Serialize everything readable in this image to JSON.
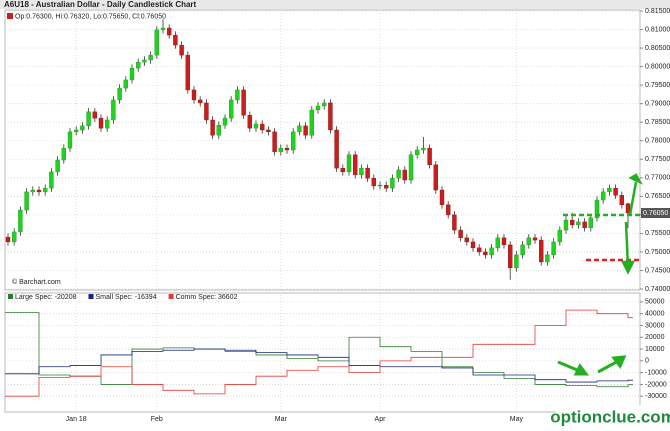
{
  "chart_data": [
    {
      "type": "candlestick",
      "title": "A6U18 - Australian Dollar - Daily Candlestick Chart",
      "ohlc_label": "Op:0.76300, Hi:0.76320, Lo:0.75650, Cl:0.76050",
      "source": "© Barchart.com",
      "last_price": {
        "value": 0.7605,
        "label": "0.76050"
      },
      "up_color": "#22d022",
      "down_color": "#c81e1e",
      "ylim": [
        0.74,
        0.815
      ],
      "yticks": [
        {
          "value": 0.74,
          "label": "0.74000"
        },
        {
          "value": 0.745,
          "label": "0.74500"
        },
        {
          "value": 0.75,
          "label": "0.75000"
        },
        {
          "value": 0.755,
          "label": "0.75500"
        },
        {
          "value": 0.76,
          "label": "0.76000"
        },
        {
          "value": 0.765,
          "label": "0.76500"
        },
        {
          "value": 0.77,
          "label": "0.77000"
        },
        {
          "value": 0.775,
          "label": "0.77500"
        },
        {
          "value": 0.78,
          "label": "0.78000"
        },
        {
          "value": 0.785,
          "label": "0.78500"
        },
        {
          "value": 0.79,
          "label": "0.79000"
        },
        {
          "value": 0.795,
          "label": "0.79500"
        },
        {
          "value": 0.8,
          "label": "0.80000"
        },
        {
          "value": 0.805,
          "label": "0.80500"
        },
        {
          "value": 0.81,
          "label": "0.81000"
        },
        {
          "value": 0.815,
          "label": "0.81500"
        }
      ],
      "grid": true,
      "categories": [
        null,
        null,
        null,
        null,
        null,
        null,
        null,
        null,
        null,
        null,
        null,
        "Jan 18",
        null,
        null,
        null,
        null,
        null,
        null,
        null,
        null,
        null,
        null,
        null,
        null,
        "Feb",
        null,
        null,
        null,
        null,
        null,
        null,
        null,
        null,
        null,
        null,
        null,
        null,
        null,
        null,
        null,
        null,
        null,
        null,
        null,
        "Mar",
        null,
        null,
        null,
        null,
        null,
        null,
        null,
        null,
        null,
        null,
        null,
        null,
        null,
        null,
        null,
        "Apr",
        null,
        null,
        null,
        null,
        null,
        null,
        null,
        null,
        null,
        null,
        null,
        null,
        null,
        null,
        null,
        null,
        null,
        null,
        null,
        null,
        null,
        "May",
        null,
        null,
        null,
        null,
        null,
        null,
        null,
        null,
        null,
        null,
        null,
        null,
        null,
        null,
        null,
        null,
        null,
        null
      ],
      "ohlc": [
        [
          0.754,
          0.755,
          0.7517,
          0.7527
        ],
        [
          0.7527,
          0.7564,
          0.7517,
          0.7554
        ],
        [
          0.7554,
          0.7623,
          0.7544,
          0.7613
        ],
        [
          0.7613,
          0.7672,
          0.7603,
          0.7662
        ],
        [
          0.7662,
          0.7677,
          0.7652,
          0.7667
        ],
        [
          0.7667,
          0.7677,
          0.7652,
          0.7662
        ],
        [
          0.7662,
          0.7682,
          0.7652,
          0.7672
        ],
        [
          0.7672,
          0.7726,
          0.7662,
          0.7716
        ],
        [
          0.7716,
          0.7758,
          0.7706,
          0.7748
        ],
        [
          0.7748,
          0.779,
          0.7738,
          0.778
        ],
        [
          0.778,
          0.7834,
          0.777,
          0.7824
        ],
        [
          0.7824,
          0.7839,
          0.7814,
          0.7829
        ],
        [
          0.7829,
          0.785,
          0.7819,
          0.784
        ],
        [
          0.784,
          0.7888,
          0.783,
          0.7878
        ],
        [
          0.7878,
          0.7888,
          0.7851,
          0.7861
        ],
        [
          0.7861,
          0.7871,
          0.7824,
          0.7834
        ],
        [
          0.7834,
          0.7866,
          0.7824,
          0.7856
        ],
        [
          0.7856,
          0.792,
          0.7846,
          0.791
        ],
        [
          0.791,
          0.7952,
          0.79,
          0.7942
        ],
        [
          0.7942,
          0.7974,
          0.7932,
          0.7964
        ],
        [
          0.7964,
          0.8006,
          0.7954,
          0.7996
        ],
        [
          0.7996,
          0.8022,
          0.7986,
          0.8012
        ],
        [
          0.8012,
          0.8028,
          0.8002,
          0.8018
        ],
        [
          0.8018,
          0.8041,
          0.8008,
          0.8031
        ],
        [
          0.8031,
          0.8109,
          0.8021,
          0.8099
        ],
        [
          0.8099,
          0.8128,
          0.8089,
          0.8104
        ],
        [
          0.8104,
          0.8114,
          0.8075,
          0.8085
        ],
        [
          0.8085,
          0.8095,
          0.8048,
          0.8058
        ],
        [
          0.8058,
          0.8068,
          0.8021,
          0.8031
        ],
        [
          0.8031,
          0.8041,
          0.7927,
          0.7937
        ],
        [
          0.7937,
          0.7947,
          0.79,
          0.791
        ],
        [
          0.791,
          0.792,
          0.7892,
          0.7902
        ],
        [
          0.7902,
          0.7912,
          0.7846,
          0.7856
        ],
        [
          0.7856,
          0.7866,
          0.7805,
          0.7815
        ],
        [
          0.7815,
          0.7852,
          0.7805,
          0.7842
        ],
        [
          0.7842,
          0.7871,
          0.7832,
          0.7861
        ],
        [
          0.7861,
          0.792,
          0.7851,
          0.791
        ],
        [
          0.791,
          0.7947,
          0.79,
          0.7937
        ],
        [
          0.7937,
          0.7947,
          0.7859,
          0.7869
        ],
        [
          0.7869,
          0.7879,
          0.7824,
          0.7834
        ],
        [
          0.7834,
          0.7855,
          0.7824,
          0.7845
        ],
        [
          0.7845,
          0.7855,
          0.7819,
          0.7829
        ],
        [
          0.7829,
          0.7839,
          0.7814,
          0.7824
        ],
        [
          0.7824,
          0.7834,
          0.776,
          0.777
        ],
        [
          0.777,
          0.779,
          0.776,
          0.778
        ],
        [
          0.778,
          0.779,
          0.7765,
          0.7775
        ],
        [
          0.7775,
          0.7834,
          0.7765,
          0.7824
        ],
        [
          0.7824,
          0.785,
          0.7814,
          0.784
        ],
        [
          0.784,
          0.785,
          0.7805,
          0.7815
        ],
        [
          0.7815,
          0.7893,
          0.7805,
          0.7883
        ],
        [
          0.7883,
          0.7904,
          0.7873,
          0.7894
        ],
        [
          0.7894,
          0.7912,
          0.7884,
          0.7902
        ],
        [
          0.7902,
          0.7912,
          0.7819,
          0.7829
        ],
        [
          0.7829,
          0.7839,
          0.7716,
          0.7726
        ],
        [
          0.7726,
          0.7736,
          0.7706,
          0.7716
        ],
        [
          0.7716,
          0.7772,
          0.7706,
          0.7762
        ],
        [
          0.7762,
          0.7772,
          0.7698,
          0.7708
        ],
        [
          0.7708,
          0.7736,
          0.7698,
          0.7726
        ],
        [
          0.7726,
          0.7736,
          0.7689,
          0.7699
        ],
        [
          0.7699,
          0.7709,
          0.7668,
          0.7678
        ],
        [
          0.7678,
          0.769,
          0.7668,
          0.768
        ],
        [
          0.768,
          0.769,
          0.7662,
          0.7672
        ],
        [
          0.7672,
          0.7709,
          0.7662,
          0.7699
        ],
        [
          0.7699,
          0.7731,
          0.7689,
          0.7721
        ],
        [
          0.7721,
          0.7731,
          0.7684,
          0.7694
        ],
        [
          0.7694,
          0.7772,
          0.7684,
          0.7762
        ],
        [
          0.7762,
          0.7785,
          0.7752,
          0.7775
        ],
        [
          0.7775,
          0.781,
          0.7765,
          0.778
        ],
        [
          0.778,
          0.779,
          0.7725,
          0.7735
        ],
        [
          0.7735,
          0.7745,
          0.7657,
          0.7667
        ],
        [
          0.7667,
          0.7677,
          0.7617,
          0.7627
        ],
        [
          0.7627,
          0.7637,
          0.759,
          0.76
        ],
        [
          0.76,
          0.761,
          0.7549,
          0.7559
        ],
        [
          0.7559,
          0.7569,
          0.7528,
          0.7538
        ],
        [
          0.7538,
          0.7548,
          0.7517,
          0.7527
        ],
        [
          0.7527,
          0.7537,
          0.7501,
          0.7511
        ],
        [
          0.7511,
          0.7521,
          0.749,
          0.75
        ],
        [
          0.75,
          0.751,
          0.7482,
          0.7492
        ],
        [
          0.7492,
          0.7521,
          0.7482,
          0.7511
        ],
        [
          0.7511,
          0.7548,
          0.7501,
          0.7538
        ],
        [
          0.7538,
          0.7548,
          0.7509,
          0.7519
        ],
        [
          0.7519,
          0.7529,
          0.7425,
          0.7457
        ],
        [
          0.7457,
          0.7502,
          0.7447,
          0.7492
        ],
        [
          0.7492,
          0.7529,
          0.7482,
          0.7519
        ],
        [
          0.7519,
          0.7548,
          0.7509,
          0.7538
        ],
        [
          0.7538,
          0.7548,
          0.7522,
          0.7532
        ],
        [
          0.7532,
          0.7542,
          0.7463,
          0.7473
        ],
        [
          0.7473,
          0.7502,
          0.7463,
          0.7492
        ],
        [
          0.7492,
          0.7537,
          0.7482,
          0.7527
        ],
        [
          0.7527,
          0.7569,
          0.7517,
          0.7559
        ],
        [
          0.7559,
          0.7596,
          0.7549,
          0.7586
        ],
        [
          0.7586,
          0.7606,
          0.7563,
          0.7573
        ],
        [
          0.7573,
          0.7591,
          0.7563,
          0.7581
        ],
        [
          0.7581,
          0.7591,
          0.7555,
          0.7565
        ],
        [
          0.7565,
          0.7602,
          0.7555,
          0.7592
        ],
        [
          0.7592,
          0.765,
          0.7582,
          0.764
        ],
        [
          0.764,
          0.7672,
          0.763,
          0.7662
        ],
        [
          0.7662,
          0.7682,
          0.7652,
          0.7672
        ],
        [
          0.7672,
          0.7682,
          0.7643,
          0.7653
        ],
        [
          0.7653,
          0.7663,
          0.7617,
          0.7627
        ],
        [
          0.763,
          0.7632,
          0.7565,
          0.7605
        ]
      ]
    },
    {
      "type": "step",
      "ylim": [
        -40000,
        55000
      ],
      "yticks": [
        -30000,
        -20000,
        -10000,
        0,
        10000,
        20000,
        30000,
        40000,
        50000
      ],
      "grid": true,
      "series": [
        {
          "name": "Large Spec: -20208",
          "color": "#2e7d32",
          "values": [
            41000,
            -12000,
            -13000,
            -20000,
            10000,
            11000,
            10000,
            8000,
            5000,
            2000,
            0,
            20000,
            12000,
            8000,
            -5000,
            -10000,
            -15000,
            -20000,
            -21000,
            -22000,
            -20208
          ]
        },
        {
          "name": "Small Spec: -16394",
          "color": "#1a237e",
          "values": [
            -11000,
            -5000,
            -4000,
            5000,
            8000,
            9000,
            10000,
            9000,
            7000,
            5000,
            3000,
            -4000,
            -5000,
            -5000,
            -6000,
            -12000,
            -12000,
            -16000,
            -18000,
            -17000,
            -16394
          ]
        },
        {
          "name": "Comm Spec: 36602",
          "color": "#e53935",
          "values": [
            -30000,
            -14000,
            -13000,
            -5000,
            -20000,
            -25000,
            -28000,
            -20000,
            -13000,
            -8000,
            -5000,
            -10000,
            0,
            3000,
            3000,
            14000,
            14000,
            30000,
            43000,
            40000,
            36602
          ]
        }
      ]
    }
  ],
  "watermark": "optionclue.com"
}
